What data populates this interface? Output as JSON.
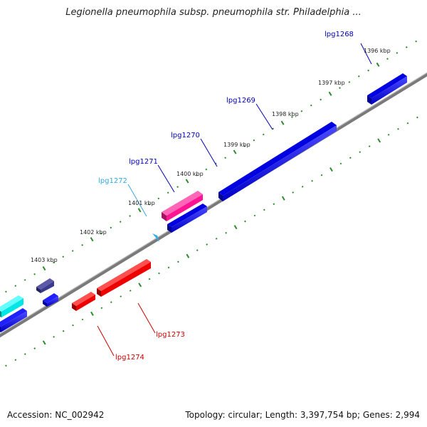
{
  "title": "Legionella pneumophila subsp. pneumophila str. Philadelphia ...",
  "footer": {
    "accession": "Accession: NC_002942",
    "stats": "Topology: circular; Length: 3,397,754 bp; Genes: 2,994"
  },
  "colors": {
    "forward_gene": "#0000ff",
    "reverse_gene": "#ff0000",
    "pink_gene": "#ff1493",
    "cyan_gene": "#00e5e5",
    "navy_gene": "#3c3a8c",
    "small_cyan": "#30b0e8",
    "backbone": "#808080",
    "ticks": "#2e8b2e",
    "forward_label": "#0000bb",
    "cyan_label": "#33aadd",
    "reverse_label": "#cc0000"
  },
  "kbp_labels": [
    "1396 kbp",
    "1397 kbp",
    "1398 kbp",
    "1399 kbp",
    "1400 kbp",
    "1401 kbp",
    "1402 kbp",
    "1403 kbp"
  ],
  "gene_labels": {
    "lpg1268": "lpg1268",
    "lpg1269": "lpg1269",
    "lpg1270": "lpg1270",
    "lpg1271": "lpg1271",
    "lpg1272": "lpg1272",
    "lpg1273": "lpg1273",
    "lpg1274": "lpg1274"
  }
}
